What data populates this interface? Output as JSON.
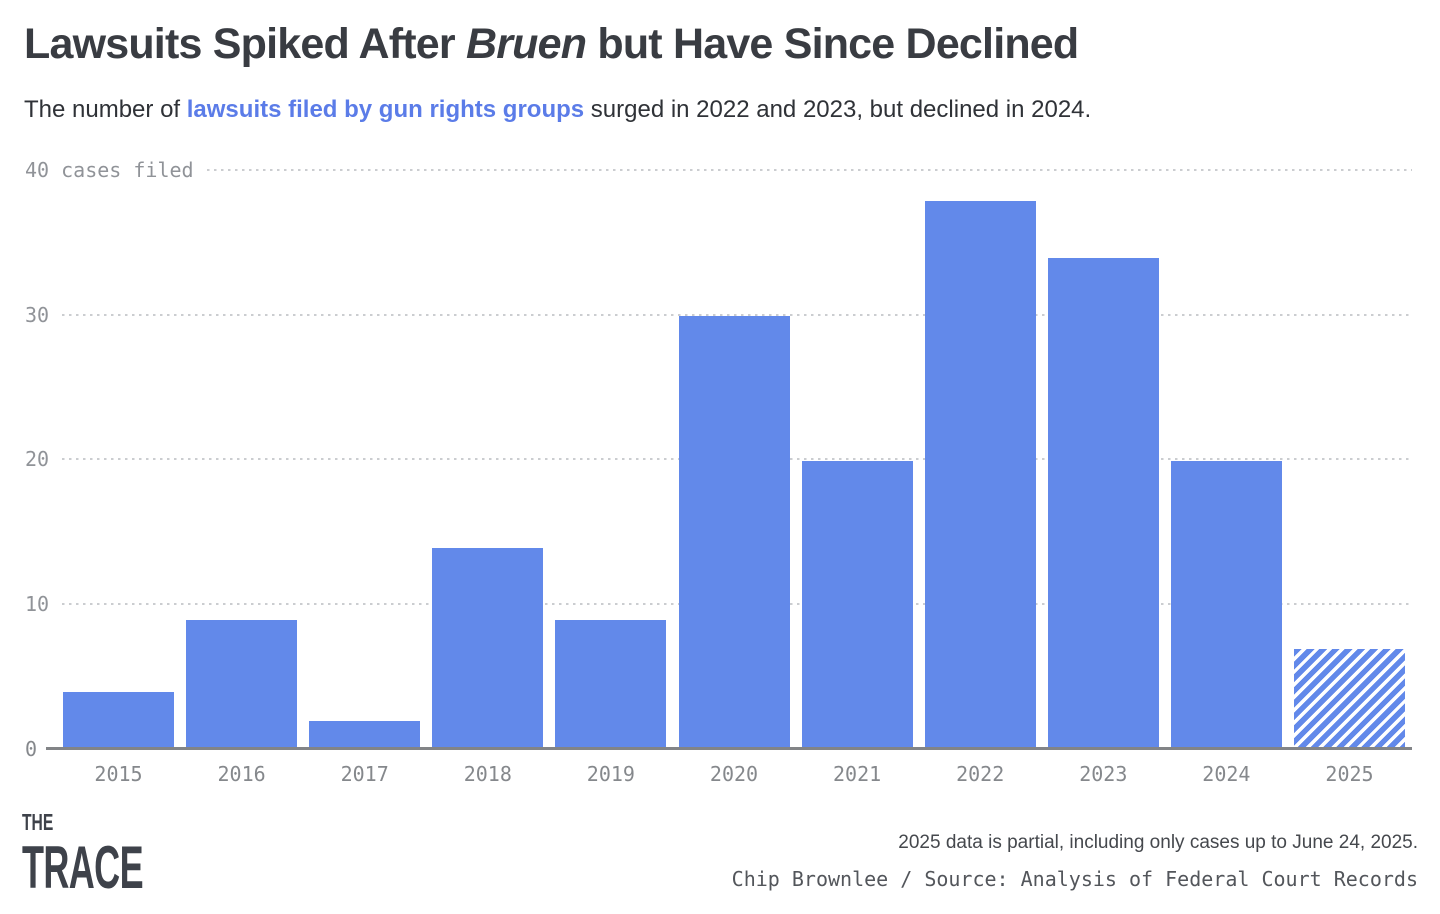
{
  "header": {
    "title_pre": "Lawsuits Spiked After ",
    "title_italic": "Bruen",
    "title_post": " but Have Since Declined",
    "subtitle_pre": "The number of ",
    "subtitle_highlight": "lawsuits filed by gun rights groups",
    "subtitle_post": " surged in 2022 and 2023, but declined in 2024."
  },
  "chart_data": {
    "type": "bar",
    "title": "Lawsuits Spiked After Bruen but Have Since Declined",
    "subtitle": "The number of lawsuits filed by gun rights groups surged in 2022 and 2023, but declined in 2024.",
    "categories": [
      "2015",
      "2016",
      "2017",
      "2018",
      "2019",
      "2020",
      "2021",
      "2022",
      "2023",
      "2024",
      "2025"
    ],
    "values": [
      4,
      9,
      2,
      14,
      9,
      30,
      20,
      38,
      34,
      20,
      7
    ],
    "partial_category": "2025",
    "yticks": [
      {
        "label": "40 cases filed",
        "value": 40
      },
      {
        "label": "30",
        "value": 30
      },
      {
        "label": "20",
        "value": 20
      },
      {
        "label": "10",
        "value": 10
      },
      {
        "label": "0",
        "value": 0
      }
    ],
    "ylim": [
      0,
      40
    ],
    "ylabel": "cases filed",
    "xlabel": "",
    "grid": "horizontal dotted",
    "legend": "none",
    "bar_color": "#6289ea",
    "hatch_style": "diagonal blue-and-white stripes on 2025 bar (partial year)"
  },
  "footer": {
    "logo_line1": "THE",
    "logo_line2": "TRACE",
    "note": "2025 data is partial, including only cases up to June 24, 2025.",
    "credit": "Chip Brownlee / Source: Analysis of Federal Court Records"
  },
  "colors": {
    "bar_blue": "#6289ea",
    "link_blue": "#5b7ce8",
    "title_gray": "#393c42",
    "axis_gray": "#909398",
    "gridline_gray": "#cbcdd0",
    "baseline_gray": "#828487"
  }
}
